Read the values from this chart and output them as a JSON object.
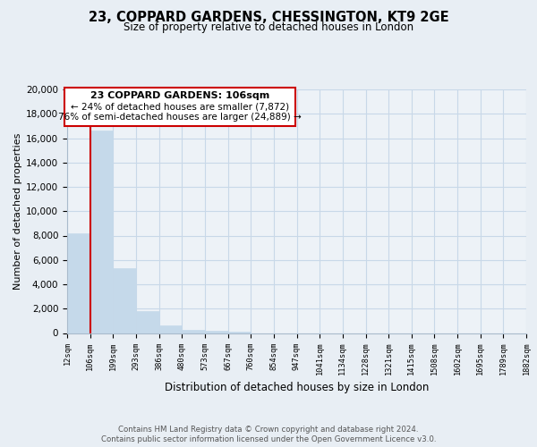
{
  "title": "23, COPPARD GARDENS, CHESSINGTON, KT9 2GE",
  "subtitle": "Size of property relative to detached houses in London",
  "xlabel": "Distribution of detached houses by size in London",
  "ylabel": "Number of detached properties",
  "bar_color": "#c5d9ea",
  "highlight_color": "#cc0000",
  "background_color": "#e8eef4",
  "plot_bg_color": "#edf2f7",
  "bin_edges": [
    12,
    106,
    199,
    293,
    386,
    480,
    573,
    667,
    760,
    854,
    947,
    1041,
    1134,
    1228,
    1321,
    1415,
    1508,
    1602,
    1695,
    1789,
    1882
  ],
  "bin_labels": [
    "12sqm",
    "106sqm",
    "199sqm",
    "293sqm",
    "386sqm",
    "480sqm",
    "573sqm",
    "667sqm",
    "760sqm",
    "854sqm",
    "947sqm",
    "1041sqm",
    "1134sqm",
    "1228sqm",
    "1321sqm",
    "1415sqm",
    "1508sqm",
    "1602sqm",
    "1695sqm",
    "1789sqm",
    "1882sqm"
  ],
  "counts": [
    8200,
    16600,
    5300,
    1800,
    620,
    230,
    180,
    100,
    0,
    0,
    0,
    0,
    0,
    0,
    0,
    0,
    0,
    0,
    0,
    0
  ],
  "property_sqm": 106,
  "annotation_line1": "23 COPPARD GARDENS: 106sqm",
  "annotation_line2": "← 24% of detached houses are smaller (7,872)",
  "annotation_line3": "76% of semi-detached houses are larger (24,889) →",
  "ylim": [
    0,
    20000
  ],
  "yticks": [
    0,
    2000,
    4000,
    6000,
    8000,
    10000,
    12000,
    14000,
    16000,
    18000,
    20000
  ],
  "footer_line1": "Contains HM Land Registry data © Crown copyright and database right 2024.",
  "footer_line2": "Contains public sector information licensed under the Open Government Licence v3.0.",
  "grid_color": "#c8d8e8",
  "spine_color": "#aabbcc"
}
